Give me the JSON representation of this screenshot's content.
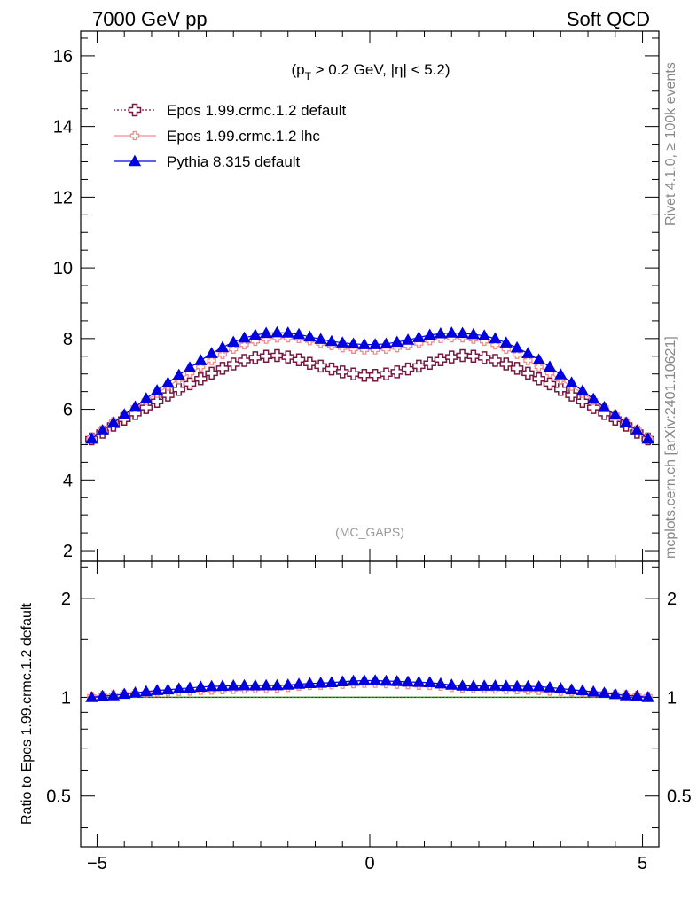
{
  "header": {
    "left_title": "7000 GeV pp",
    "right_title": "Soft QCD"
  },
  "side_labels": {
    "rivet": "Rivet 4.1.0, ≥ 100k events",
    "mcplots": "mcplots.cern.ch [arXiv:2401.10621]"
  },
  "chart_data": {
    "type": "line",
    "title": "(p_T > 0.2 GeV, |η| < 5.2)",
    "title_parts": {
      "p": "(p",
      "sub": "T",
      "rest": " > 0.2 GeV, |η| < 5.2)"
    },
    "watermark": "(MC_GAPS)",
    "xlabel": "",
    "ylabel": "",
    "ratio_ylabel": "Ratio to Epos 1.99.crmc.1.2 default",
    "xlim": [
      -5.3,
      5.3
    ],
    "ylim": [
      1.7,
      16.7
    ],
    "ratio_ylim": [
      0.35,
      2.6
    ],
    "x_ticks": [
      -5,
      0,
      5
    ],
    "x_tick_labels": [
      "−5",
      "0",
      "5"
    ],
    "y_ticks": [
      2,
      4,
      6,
      8,
      10,
      12,
      14,
      16
    ],
    "y_tick_labels": [
      "2",
      "4",
      "6",
      "8",
      "10",
      "12",
      "14",
      "16"
    ],
    "ratio_ticks": [
      0.5,
      1,
      2
    ],
    "ratio_tick_labels": [
      "0.5",
      "1",
      "2"
    ],
    "legend_position": "top-left",
    "x": [
      -5.1,
      -4.9,
      -4.7,
      -4.5,
      -4.3,
      -4.1,
      -3.9,
      -3.7,
      -3.5,
      -3.3,
      -3.1,
      -2.9,
      -2.7,
      -2.5,
      -2.3,
      -2.1,
      -1.9,
      -1.7,
      -1.5,
      -1.3,
      -1.1,
      -0.9,
      -0.7,
      -0.5,
      -0.3,
      -0.1,
      0.1,
      0.3,
      0.5,
      0.7,
      0.9,
      1.1,
      1.3,
      1.5,
      1.7,
      1.9,
      2.1,
      2.3,
      2.5,
      2.7,
      2.9,
      3.1,
      3.3,
      3.5,
      3.7,
      3.9,
      4.1,
      4.3,
      4.5,
      4.7,
      4.9,
      5.1
    ],
    "series": [
      {
        "name": "Epos 1.99.crmc.1.2 default",
        "color": "#7a1740",
        "marker": "open-cross",
        "line": "dotted",
        "values": [
          5.16,
          5.35,
          5.55,
          5.72,
          5.88,
          6.05,
          6.22,
          6.4,
          6.56,
          6.72,
          6.86,
          7.02,
          7.16,
          7.28,
          7.38,
          7.46,
          7.5,
          7.52,
          7.48,
          7.4,
          7.3,
          7.22,
          7.14,
          7.06,
          7.0,
          6.96,
          6.96,
          7.0,
          7.06,
          7.14,
          7.22,
          7.3,
          7.4,
          7.48,
          7.52,
          7.5,
          7.46,
          7.38,
          7.28,
          7.16,
          7.02,
          6.86,
          6.72,
          6.56,
          6.4,
          6.22,
          6.05,
          5.88,
          5.72,
          5.55,
          5.35,
          5.16
        ]
      },
      {
        "name": "Epos 1.99.crmc.1.2 lhc",
        "color": "#f08c8c",
        "marker": "small-open-cross",
        "line": "solid",
        "values": [
          5.2,
          5.42,
          5.65,
          5.85,
          6.05,
          6.25,
          6.45,
          6.65,
          6.84,
          7.02,
          7.2,
          7.38,
          7.55,
          7.7,
          7.82,
          7.92,
          7.98,
          8.02,
          8.02,
          8.0,
          7.94,
          7.86,
          7.8,
          7.74,
          7.7,
          7.68,
          7.68,
          7.7,
          7.74,
          7.8,
          7.86,
          7.94,
          8.0,
          8.02,
          8.02,
          7.98,
          7.92,
          7.82,
          7.7,
          7.55,
          7.38,
          7.2,
          7.02,
          6.84,
          6.65,
          6.45,
          6.25,
          6.05,
          5.85,
          5.65,
          5.42,
          5.2
        ]
      },
      {
        "name": "Pythia 8.315 default",
        "color": "#0000e0",
        "marker": "filled-triangle",
        "line": "solid",
        "values": [
          5.16,
          5.4,
          5.62,
          5.85,
          6.07,
          6.3,
          6.53,
          6.75,
          6.97,
          7.18,
          7.38,
          7.58,
          7.75,
          7.9,
          8.02,
          8.1,
          8.15,
          8.17,
          8.16,
          8.12,
          8.05,
          7.98,
          7.92,
          7.88,
          7.85,
          7.83,
          7.83,
          7.85,
          7.9,
          7.96,
          8.03,
          8.1,
          8.14,
          8.16,
          8.15,
          8.12,
          8.08,
          8.0,
          7.88,
          7.74,
          7.58,
          7.4,
          7.2,
          6.98,
          6.75,
          6.52,
          6.29,
          6.06,
          5.84,
          5.62,
          5.4,
          5.16
        ]
      }
    ]
  }
}
